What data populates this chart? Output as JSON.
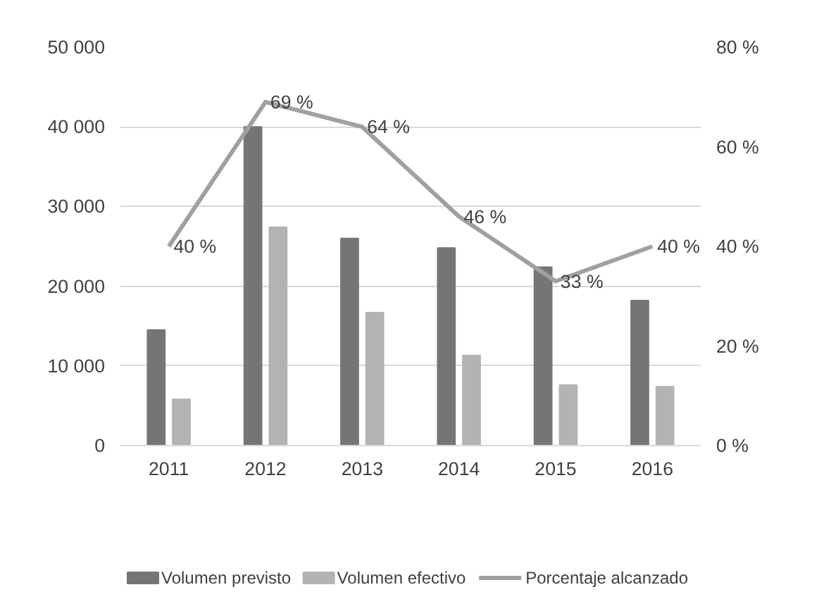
{
  "chart_data": {
    "type": "bar",
    "categories": [
      "2011",
      "2012",
      "2013",
      "2014",
      "2015",
      "2016"
    ],
    "series": [
      {
        "name": "Volumen previsto",
        "color": "#757575",
        "values": [
          14500,
          40000,
          26000,
          24800,
          22400,
          18200
        ]
      },
      {
        "name": "Volumen efectivo",
        "color": "#b3b3b3",
        "values": [
          5800,
          27400,
          16700,
          11300,
          7600,
          7400
        ]
      },
      {
        "name": "Porcentaje alcanzado",
        "type": "line",
        "axis": "y2",
        "color": "#a0a0a0",
        "values": [
          40,
          69,
          64,
          46,
          33,
          40
        ],
        "value_labels": [
          "40 %",
          "69 %",
          "64 %",
          "46 %",
          "33 %",
          "40 %"
        ]
      }
    ],
    "ylim": [
      0,
      50000
    ],
    "yticks": [
      {
        "value": 0,
        "label": "0"
      },
      {
        "value": 10000,
        "label": "10 000"
      },
      {
        "value": 20000,
        "label": "20 000"
      },
      {
        "value": 30000,
        "label": "30 000"
      },
      {
        "value": 40000,
        "label": "40 000"
      },
      {
        "value": 50000,
        "label": "50 000"
      }
    ],
    "y2lim": [
      0,
      80
    ],
    "y2ticks": [
      {
        "value": 0,
        "label": "0 %"
      },
      {
        "value": 20,
        "label": "20 %"
      },
      {
        "value": 40,
        "label": "40 %"
      },
      {
        "value": 60,
        "label": "60 %"
      },
      {
        "value": 80,
        "label": "80 %"
      }
    ],
    "grid": "y",
    "legend": "bottom",
    "marker": "none"
  }
}
